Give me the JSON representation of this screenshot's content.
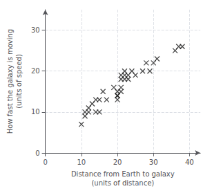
{
  "chart_data": {
    "type": "scatter",
    "title": "",
    "xlabel": "Distance from Earth to galaxy\n(units of distance)",
    "ylabel": "How fast the galaxy is moving\n(units of speed)",
    "x": [
      10,
      11,
      11,
      12,
      12,
      13,
      14,
      14,
      15,
      15,
      16,
      17,
      19,
      20,
      20,
      20,
      20,
      21,
      21,
      21,
      21,
      22,
      22,
      22,
      23,
      23,
      24,
      25,
      27,
      28,
      29,
      30,
      31,
      36,
      37,
      38
    ],
    "values": [
      7,
      9,
      10,
      10,
      11,
      12,
      10,
      13,
      10,
      13,
      15,
      13,
      16,
      13,
      14,
      14,
      15,
      15,
      16,
      18,
      19,
      18,
      19,
      20,
      18,
      19,
      20,
      19,
      20,
      22,
      20,
      22,
      23,
      25,
      26,
      26
    ],
    "color": "#1a1a1a",
    "marker": "x",
    "xlim": [
      0,
      43
    ],
    "ylim": [
      0,
      35
    ],
    "xticks": [
      0,
      10,
      20,
      30,
      40
    ],
    "yticks": [
      0,
      10,
      20,
      30
    ],
    "grid": true
  }
}
